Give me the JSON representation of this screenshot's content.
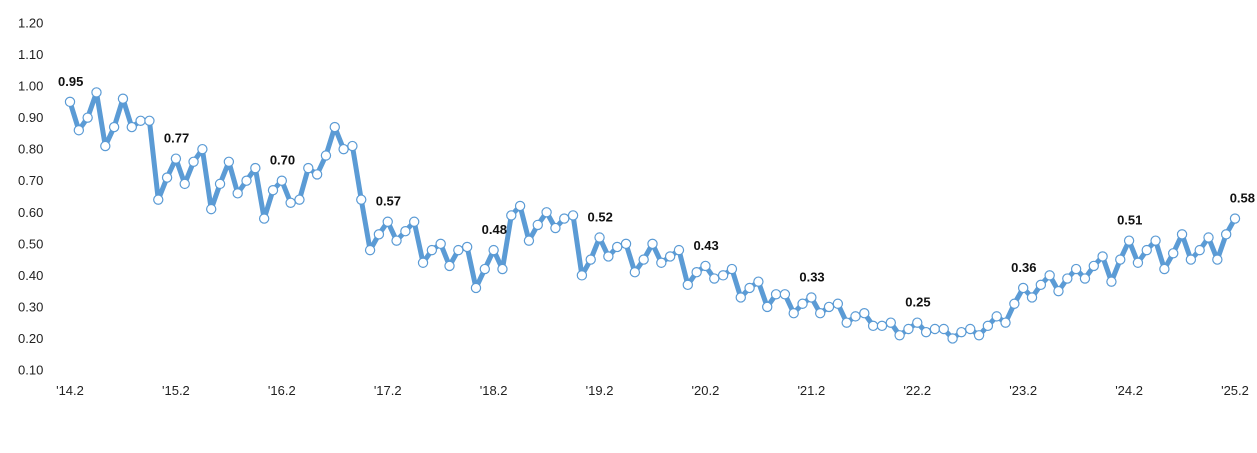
{
  "chart_data": {
    "type": "line",
    "title": "",
    "xlabel": "",
    "ylabel": "",
    "ylim": [
      0.1,
      1.2
    ],
    "y_ticks": [
      "0.10",
      "0.20",
      "0.30",
      "0.40",
      "0.50",
      "0.60",
      "0.70",
      "0.80",
      "0.90",
      "1.00",
      "1.10",
      "1.20"
    ],
    "x_tick_labels": [
      "'14.2",
      "'15.2",
      "'16.2",
      "'17.2",
      "'18.2",
      "'19.2",
      "'20.2",
      "'21.2",
      "'22.2",
      "'23.2",
      "'24.2",
      "'25.2"
    ],
    "x_tick_index": [
      0,
      12,
      24,
      36,
      48,
      60,
      72,
      84,
      96,
      108,
      120,
      132
    ],
    "grid": false,
    "legend": "none",
    "line_color": "#5b9bd5",
    "marker_fill": "#ffffff",
    "series": [
      {
        "values": [
          0.95,
          0.86,
          0.9,
          0.98,
          0.81,
          0.87,
          0.96,
          0.87,
          0.89,
          0.89,
          0.64,
          0.71,
          0.77,
          0.69,
          0.76,
          0.8,
          0.61,
          0.69,
          0.76,
          0.66,
          0.7,
          0.74,
          0.58,
          0.67,
          0.7,
          0.63,
          0.64,
          0.74,
          0.72,
          0.78,
          0.87,
          0.8,
          0.81,
          0.64,
          0.48,
          0.53,
          0.57,
          0.51,
          0.54,
          0.57,
          0.44,
          0.48,
          0.5,
          0.43,
          0.48,
          0.49,
          0.36,
          0.42,
          0.48,
          0.42,
          0.59,
          0.62,
          0.51,
          0.56,
          0.6,
          0.55,
          0.58,
          0.59,
          0.4,
          0.45,
          0.52,
          0.46,
          0.49,
          0.5,
          0.41,
          0.45,
          0.5,
          0.44,
          0.46,
          0.48,
          0.37,
          0.41,
          0.43,
          0.39,
          0.4,
          0.42,
          0.33,
          0.36,
          0.38,
          0.3,
          0.34,
          0.34,
          0.28,
          0.31,
          0.33,
          0.28,
          0.3,
          0.31,
          0.25,
          0.27,
          0.28,
          0.24,
          0.24,
          0.25,
          0.21,
          0.23,
          0.25,
          0.22,
          0.23,
          0.23,
          0.2,
          0.22,
          0.23,
          0.21,
          0.24,
          0.27,
          0.25,
          0.31,
          0.36,
          0.33,
          0.37,
          0.4,
          0.35,
          0.39,
          0.42,
          0.39,
          0.43,
          0.46,
          0.38,
          0.45,
          0.51,
          0.44,
          0.48,
          0.51,
          0.42,
          0.47,
          0.53,
          0.45,
          0.48,
          0.52,
          0.45,
          0.53,
          0.58
        ]
      }
    ],
    "data_labels": [
      {
        "index": 0,
        "text": "0.95"
      },
      {
        "index": 12,
        "text": "0.77"
      },
      {
        "index": 24,
        "text": "0.70"
      },
      {
        "index": 36,
        "text": "0.57"
      },
      {
        "index": 48,
        "text": "0.48"
      },
      {
        "index": 60,
        "text": "0.52"
      },
      {
        "index": 72,
        "text": "0.43"
      },
      {
        "index": 84,
        "text": "0.33"
      },
      {
        "index": 96,
        "text": "0.25"
      },
      {
        "index": 108,
        "text": "0.36"
      },
      {
        "index": 120,
        "text": "0.51"
      },
      {
        "index": 132,
        "text": "0.58"
      }
    ]
  }
}
